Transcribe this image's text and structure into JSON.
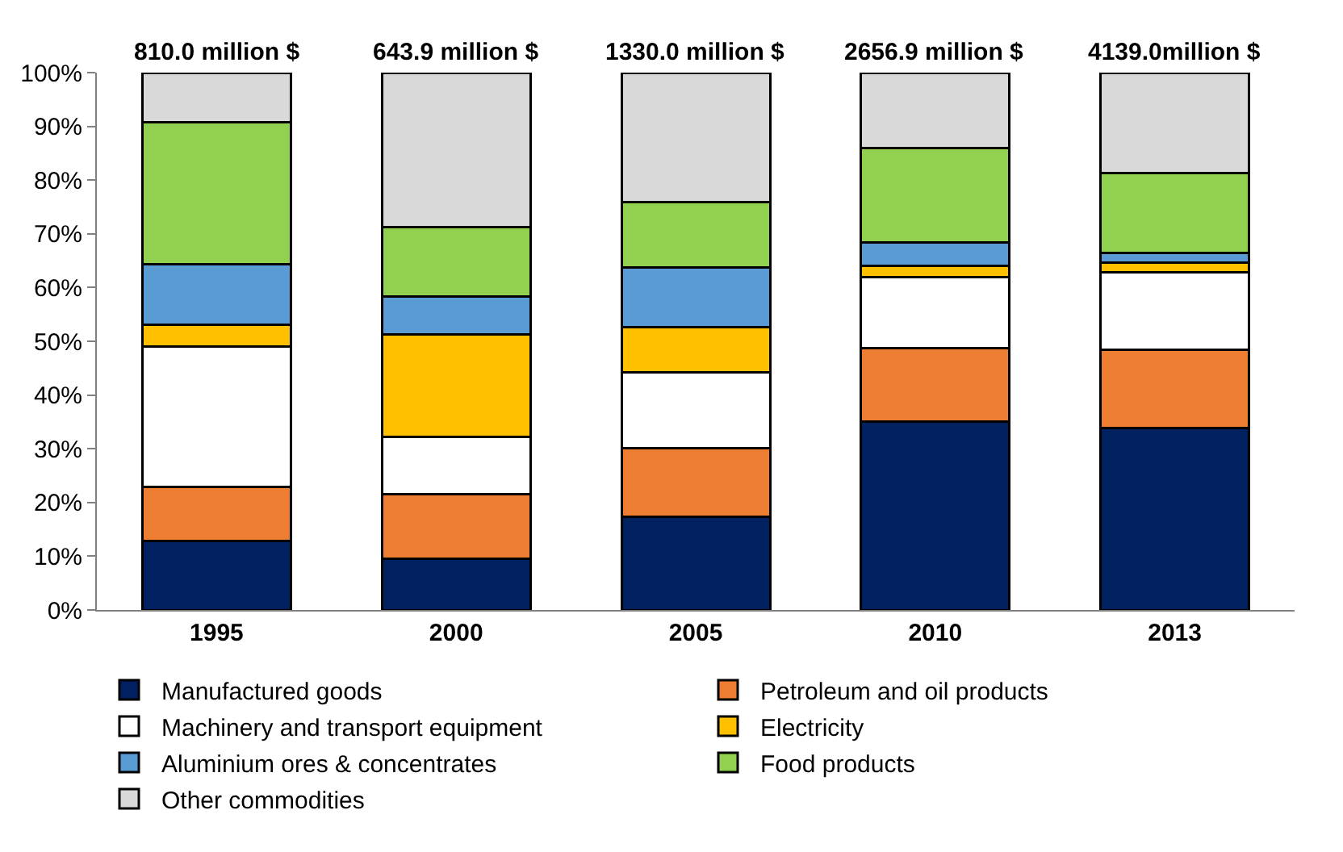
{
  "chart_data": {
    "type": "bar",
    "stacked": true,
    "categories": [
      "1995",
      "2000",
      "2005",
      "2010",
      "2013"
    ],
    "series": [
      {
        "name": "Manufactured goods",
        "color": "#002060",
        "values": [
          12.9,
          9.5,
          17.4,
          35.1,
          33.8
        ]
      },
      {
        "name": "Petroleum and oil products",
        "color": "#ed7d31",
        "values": [
          10.0,
          12.0,
          12.7,
          13.6,
          14.7
        ]
      },
      {
        "name": "Machinery and transport equipment",
        "color": "#ffffff",
        "values": [
          26.2,
          10.7,
          14.1,
          13.2,
          14.4
        ]
      },
      {
        "name": "Electricity",
        "color": "#ffc000",
        "values": [
          4.0,
          19.1,
          8.4,
          2.2,
          1.7
        ]
      },
      {
        "name": "Aluminium ores & concentrates",
        "color": "#5b9bd5",
        "values": [
          11.2,
          7.1,
          11.2,
          4.3,
          1.8
        ]
      },
      {
        "name": "Food products",
        "color": "#92d050",
        "values": [
          26.5,
          12.8,
          12.1,
          17.5,
          14.9
        ]
      },
      {
        "name": "Other commodities",
        "color": "#d9d9d9",
        "values": [
          9.2,
          28.8,
          24.1,
          14.1,
          18.7
        ]
      }
    ],
    "annotations": [
      {
        "text": "810.0 million $",
        "x": "1995",
        "y": 100
      },
      {
        "text": "643.9 million $",
        "x": "2000",
        "y": 100
      },
      {
        "text": "1330.0 million $",
        "x": "2005",
        "y": 100
      },
      {
        "text": "2656.9 million $",
        "x": "2010",
        "y": 100
      },
      {
        "text": "4139.0million $",
        "x": "2013",
        "y": 100
      }
    ],
    "ylim": [
      0,
      100
    ],
    "yticks": [
      {
        "value": 0,
        "label": "0%"
      },
      {
        "value": 10,
        "label": "10%"
      },
      {
        "value": 20,
        "label": "20%"
      },
      {
        "value": 30,
        "label": "30%"
      },
      {
        "value": 40,
        "label": "40%"
      },
      {
        "value": 50,
        "label": "50%"
      },
      {
        "value": 60,
        "label": "60%"
      },
      {
        "value": 70,
        "label": "70%"
      },
      {
        "value": 80,
        "label": "80%"
      },
      {
        "value": 90,
        "label": "90%"
      },
      {
        "value": 100,
        "label": "100%"
      }
    ],
    "legend": "bottom"
  }
}
